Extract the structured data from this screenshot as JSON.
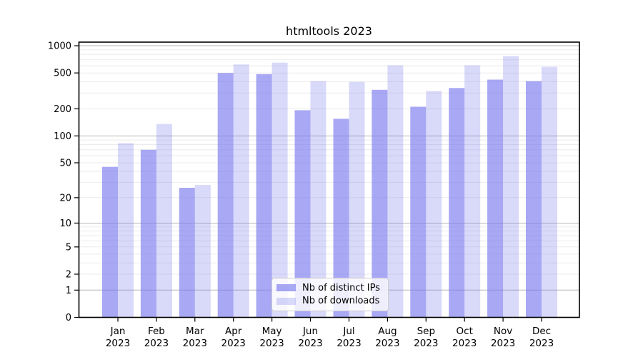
{
  "chart_data": {
    "type": "bar",
    "title": "htmltools 2023",
    "x_year_label": "2023",
    "categories": [
      "Jan",
      "Feb",
      "Mar",
      "Apr",
      "May",
      "Jun",
      "Jul",
      "Aug",
      "Sep",
      "Oct",
      "Nov",
      "Dec"
    ],
    "series": [
      {
        "name": "Nb of distinct IPs",
        "color": "rgba(119,119,238,0.64)",
        "values": [
          45,
          70,
          26,
          500,
          485,
          193,
          155,
          325,
          211,
          340,
          422,
          406
        ]
      },
      {
        "name": "Nb of downloads",
        "color": "rgba(119,119,238,0.28)",
        "values": [
          83,
          136,
          28,
          620,
          650,
          405,
          398,
          607,
          315,
          607,
          768,
          585
        ]
      }
    ],
    "y_axis": {
      "scale": "log1p",
      "ticks": [
        0,
        1,
        2,
        5,
        10,
        20,
        50,
        100,
        200,
        500,
        1000
      ],
      "ylim": [
        0,
        1086
      ]
    },
    "grid": {
      "on": true,
      "minor_color": "#ebebeb",
      "major_color": "#b6b6b6",
      "major_values": [
        1,
        10,
        100,
        1000
      ]
    },
    "legend": {
      "position": "lower-center"
    },
    "colors": {
      "axis": "#000000",
      "text": "#000000",
      "background": "#ffffff"
    }
  }
}
